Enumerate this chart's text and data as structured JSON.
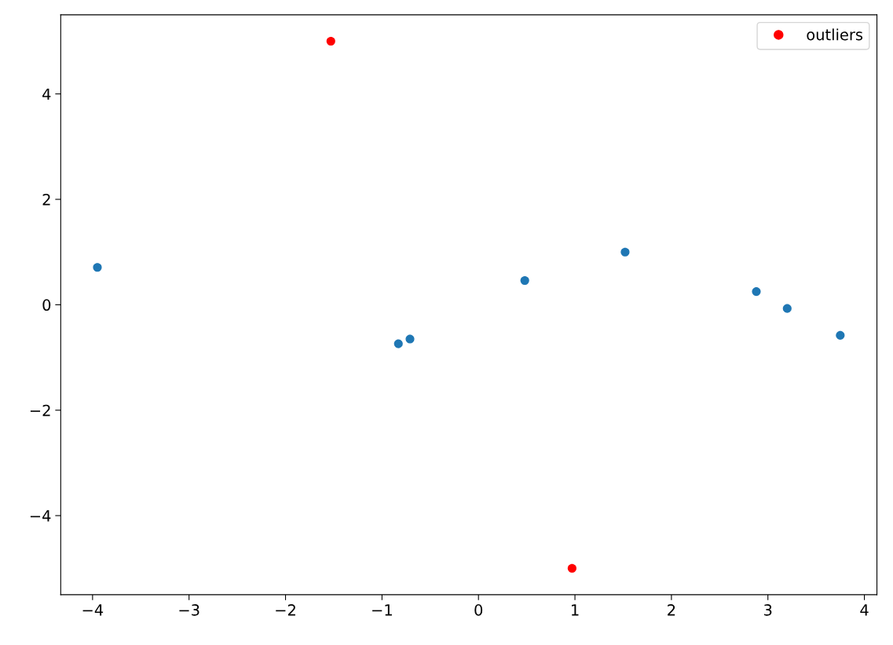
{
  "chart_data": {
    "type": "scatter",
    "series": [
      {
        "color": "#1f77b4",
        "x": [
          -3.95,
          -0.83,
          -0.71,
          0.48,
          1.52,
          2.88,
          3.2,
          3.75
        ],
        "values": [
          0.71,
          -0.74,
          -0.65,
          0.46,
          1.0,
          0.25,
          -0.07,
          -0.58
        ]
      },
      {
        "name": "outliers",
        "color": "#ff0000",
        "x": [
          -1.53,
          0.97
        ],
        "values": [
          5,
          -5
        ]
      }
    ],
    "xlim": [
      -4.33,
      4.13
    ],
    "xticks": [
      {
        "value": -4,
        "label": "−4"
      },
      {
        "value": -3,
        "label": "−3"
      },
      {
        "value": -2,
        "label": "−2"
      },
      {
        "value": -1,
        "label": "−1"
      },
      0,
      1,
      2,
      3,
      4
    ],
    "ylim": [
      -5.5,
      5.5
    ],
    "yticks": [
      {
        "value": -4,
        "label": "−4"
      },
      {
        "value": -2,
        "label": "−2"
      },
      0,
      2,
      4
    ],
    "grid": false,
    "legend": "top right",
    "marker": "circle"
  }
}
